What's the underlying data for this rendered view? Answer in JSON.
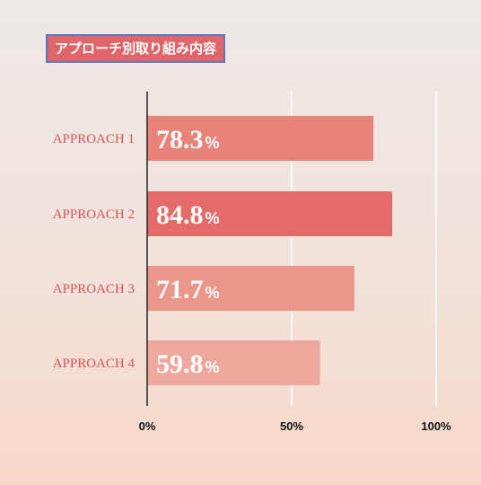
{
  "title": "アプローチ別取り組み内容",
  "colors": {
    "title_bg": "#e0656a",
    "title_border": "#5a78c4",
    "label": "#d8545a",
    "axis": "#222222",
    "grid": "#ffffff",
    "bars": [
      "#e8837a",
      "#e56b6a",
      "#e9968b",
      "#eea79d"
    ]
  },
  "chart_data": {
    "type": "bar",
    "orientation": "horizontal",
    "categories": [
      "APPROACH 1",
      "APPROACH 2",
      "APPROACH 3",
      "APPROACH 4"
    ],
    "values": [
      78.3,
      84.8,
      71.7,
      59.8
    ],
    "value_labels": [
      "78.3",
      "84.8",
      "71.7",
      "59.8"
    ],
    "value_suffix": "%",
    "xlim": [
      0,
      100
    ],
    "xticks": [
      0,
      50,
      100
    ],
    "xtick_labels": [
      "0%",
      "50%",
      "100%"
    ],
    "grid": true
  }
}
